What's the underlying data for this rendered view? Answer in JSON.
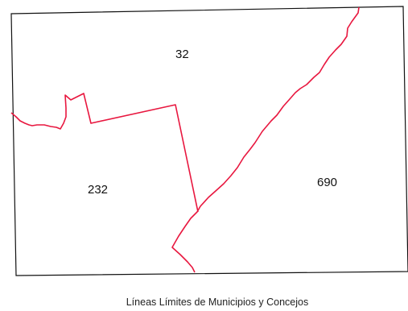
{
  "map": {
    "frame_color": "#111111",
    "boundary_color": "#e8173f",
    "regions": [
      {
        "id": "32",
        "label": "32"
      },
      {
        "id": "232",
        "label": "232"
      },
      {
        "id": "690",
        "label": "690"
      }
    ]
  },
  "caption": "Líneas Límites de Municipios y Concejos"
}
